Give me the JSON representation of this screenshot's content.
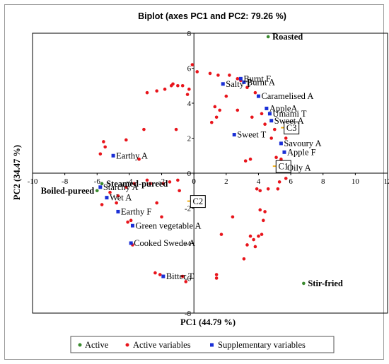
{
  "chart_data": {
    "type": "scatter",
    "title": "Biplot (axes PC1 and PC2: 79.26 %)",
    "xlabel": "PC1 (44.79 %)",
    "ylabel": "PC2 (34.47 %)",
    "xlim": [
      -10,
      12
    ],
    "ylim": [
      -8,
      8
    ],
    "xticks": [
      -10,
      -8,
      -6,
      -4,
      -2,
      0,
      2,
      4,
      6,
      8,
      10,
      12
    ],
    "yticks": [
      -8,
      -6,
      -4,
      -2,
      0,
      2,
      4,
      6,
      8
    ],
    "legend": {
      "placement": "bottom",
      "entries": [
        "Active",
        "Active variables",
        "Supplementary variables"
      ]
    },
    "colors": {
      "active": "#3a8a2e",
      "active_variables": "#e8141b",
      "supplementary": "#1a2fd6",
      "centroid": "#f2b21c"
    },
    "series": [
      {
        "name": "Active",
        "points": [
          {
            "x": 4.6,
            "y": 7.8,
            "label": "Roasted"
          },
          {
            "x": 6.8,
            "y": -6.3,
            "label": "Stir-fried"
          },
          {
            "x": -5.7,
            "y": -0.6,
            "label": "Steamed-pureed"
          },
          {
            "x": -6.0,
            "y": -1.0,
            "label": "Boiled-pureed"
          }
        ]
      },
      {
        "name": "Active variables",
        "points": [
          {
            "x": -0.1,
            "y": 6.2
          },
          {
            "x": 0.2,
            "y": 5.8
          },
          {
            "x": 1.0,
            "y": 5.7
          },
          {
            "x": 1.5,
            "y": 5.6
          },
          {
            "x": 2.2,
            "y": 5.6
          },
          {
            "x": 2.7,
            "y": 5.4
          },
          {
            "x": 2.9,
            "y": 5.3
          },
          {
            "x": 3.3,
            "y": 4.9
          },
          {
            "x": 3.8,
            "y": 4.6
          },
          {
            "x": 2.0,
            "y": 4.4
          },
          {
            "x": 1.3,
            "y": 3.8
          },
          {
            "x": 1.6,
            "y": 3.6
          },
          {
            "x": 2.7,
            "y": 3.6
          },
          {
            "x": 1.4,
            "y": 3.2
          },
          {
            "x": 1.1,
            "y": 2.9
          },
          {
            "x": 3.6,
            "y": 3.2
          },
          {
            "x": 4.2,
            "y": 3.4
          },
          {
            "x": 4.4,
            "y": 2.8
          },
          {
            "x": 5.0,
            "y": 2.5
          },
          {
            "x": 4.8,
            "y": 2.0
          },
          {
            "x": 5.7,
            "y": 2.0
          },
          {
            "x": 3.5,
            "y": 0.8
          },
          {
            "x": 5.1,
            "y": 0.9
          },
          {
            "x": 5.4,
            "y": 0.8
          },
          {
            "x": 3.2,
            "y": 0.7
          },
          {
            "x": 5.6,
            "y": 0.2
          },
          {
            "x": 5.7,
            "y": -0.3
          },
          {
            "x": 5.3,
            "y": -0.5
          },
          {
            "x": 5.2,
            "y": -0.9
          },
          {
            "x": 4.6,
            "y": -0.9
          },
          {
            "x": 4.1,
            "y": -1.0
          },
          {
            "x": 3.9,
            "y": -0.9
          },
          {
            "x": 4.1,
            "y": -2.1
          },
          {
            "x": 4.4,
            "y": -2.2
          },
          {
            "x": 4.3,
            "y": -2.7
          },
          {
            "x": 4.2,
            "y": -3.5
          },
          {
            "x": 4.0,
            "y": -3.6
          },
          {
            "x": 3.5,
            "y": -3.6
          },
          {
            "x": 3.7,
            "y": -3.8
          },
          {
            "x": 3.8,
            "y": -4.2
          },
          {
            "x": 3.3,
            "y": -4.1
          },
          {
            "x": 3.1,
            "y": -4.9
          },
          {
            "x": 2.4,
            "y": -2.5
          },
          {
            "x": 1.7,
            "y": -3.5
          },
          {
            "x": 1.4,
            "y": -5.8
          },
          {
            "x": 1.4,
            "y": -6.0
          },
          {
            "x": -0.7,
            "y": -5.9
          },
          {
            "x": -0.5,
            "y": -6.2
          },
          {
            "x": -2.4,
            "y": -5.7
          },
          {
            "x": -2.1,
            "y": -5.8
          },
          {
            "x": -3.9,
            "y": -2.7
          },
          {
            "x": -4.1,
            "y": -2.8
          },
          {
            "x": -3.8,
            "y": -4.1
          },
          {
            "x": -4.8,
            "y": -1.7
          },
          {
            "x": -4.7,
            "y": -1.3
          },
          {
            "x": -5.7,
            "y": -1.8
          },
          {
            "x": -5.2,
            "y": -1.1
          },
          {
            "x": -4.2,
            "y": -0.8
          },
          {
            "x": -3.7,
            "y": -0.6
          },
          {
            "x": -2.9,
            "y": -0.4
          },
          {
            "x": -2.7,
            "y": -0.6
          },
          {
            "x": -1.9,
            "y": -0.6
          },
          {
            "x": -1.5,
            "y": -0.5
          },
          {
            "x": -1.0,
            "y": -0.4
          },
          {
            "x": -0.9,
            "y": -1.0
          },
          {
            "x": -2.3,
            "y": -1.7
          },
          {
            "x": -2.0,
            "y": -2.5
          },
          {
            "x": -3.4,
            "y": 0.8
          },
          {
            "x": -4.2,
            "y": 1.9
          },
          {
            "x": -5.6,
            "y": 1.8
          },
          {
            "x": -5.5,
            "y": 1.5
          },
          {
            "x": -5.8,
            "y": 1.1
          },
          {
            "x": -3.1,
            "y": 2.5
          },
          {
            "x": -2.9,
            "y": 4.6
          },
          {
            "x": -2.3,
            "y": 4.7
          },
          {
            "x": -1.8,
            "y": 4.8
          },
          {
            "x": -1.4,
            "y": 5.0
          },
          {
            "x": -1.3,
            "y": 5.1
          },
          {
            "x": -1.0,
            "y": 5.0
          },
          {
            "x": -0.7,
            "y": 5.0
          },
          {
            "x": -1.1,
            "y": 2.5
          },
          {
            "x": -0.3,
            "y": 4.8
          },
          {
            "x": -0.4,
            "y": 4.5
          }
        ]
      },
      {
        "name": "Supplementary variables",
        "points": [
          {
            "x": 2.9,
            "y": 5.4,
            "label": "Burnt F"
          },
          {
            "x": 3.1,
            "y": 5.2,
            "label": "Burnt A"
          },
          {
            "x": 1.8,
            "y": 5.1,
            "label": "Salty T"
          },
          {
            "x": 4.0,
            "y": 4.4,
            "label": "Caramelised A"
          },
          {
            "x": 4.5,
            "y": 3.7,
            "label": "AppleA"
          },
          {
            "x": 4.7,
            "y": 3.4,
            "label": "Umami T"
          },
          {
            "x": 4.8,
            "y": 3.0,
            "label": "Sweet A"
          },
          {
            "x": 2.5,
            "y": 2.2,
            "label": "Sweet T"
          },
          {
            "x": 5.4,
            "y": 1.7,
            "label": "Savoury A"
          },
          {
            "x": 5.6,
            "y": 1.2,
            "label": "Apple F"
          },
          {
            "x": 5.6,
            "y": 0.3,
            "label": "Oily A"
          },
          {
            "x": -5.0,
            "y": 1.0,
            "label": "Earthy A"
          },
          {
            "x": -5.8,
            "y": -0.8,
            "label": "Starchy A"
          },
          {
            "x": -5.4,
            "y": -1.4,
            "label": "Wet A"
          },
          {
            "x": -4.7,
            "y": -2.2,
            "label": "Earthy F"
          },
          {
            "x": -3.8,
            "y": -3.0,
            "label": "Green vegetable A"
          },
          {
            "x": -3.9,
            "y": -4.0,
            "label": "Cooked Swede A"
          },
          {
            "x": -1.9,
            "y": -5.9,
            "label": "Bitter T"
          }
        ]
      }
    ],
    "centroids": [
      {
        "x": 5.5,
        "y": 2.6,
        "label": "C3"
      },
      {
        "x": 5.0,
        "y": 0.4,
        "label": "C1"
      },
      {
        "x": -0.3,
        "y": -1.6,
        "label": "C2"
      }
    ]
  }
}
